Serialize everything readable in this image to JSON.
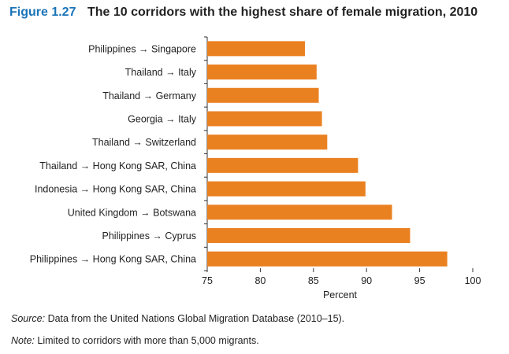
{
  "figure": {
    "label": "Figure 1.27",
    "title": "The 10 corridors with the highest share of female migration, 2010"
  },
  "chart_data": {
    "type": "bar",
    "orientation": "horizontal",
    "categories": [
      "Philippines → Singapore",
      "Thailand → Italy",
      "Thailand → Germany",
      "Georgia → Italy",
      "Thailand → Switzerland",
      "Thailand → Hong Kong SAR, China",
      "Indonesia → Hong Kong SAR, China",
      "United Kingdom → Botswana",
      "Philippines → Cyprus",
      "Philippines → Hong Kong SAR, China"
    ],
    "values": [
      84.2,
      85.3,
      85.5,
      85.8,
      86.3,
      89.2,
      89.9,
      92.4,
      94.1,
      97.6
    ],
    "xlabel": "Percent",
    "ylabel": "",
    "xlim": [
      75,
      100
    ],
    "xticks": [
      75,
      80,
      85,
      90,
      95,
      100
    ],
    "grid": false,
    "bar_color": "#ea8121"
  },
  "notes": {
    "source_label": "Source:",
    "source_text": " Data from the United Nations Global Migration Database (2010–15).",
    "note_label": "Note:",
    "note_text": " Limited to corridors with more than 5,000 migrants."
  }
}
